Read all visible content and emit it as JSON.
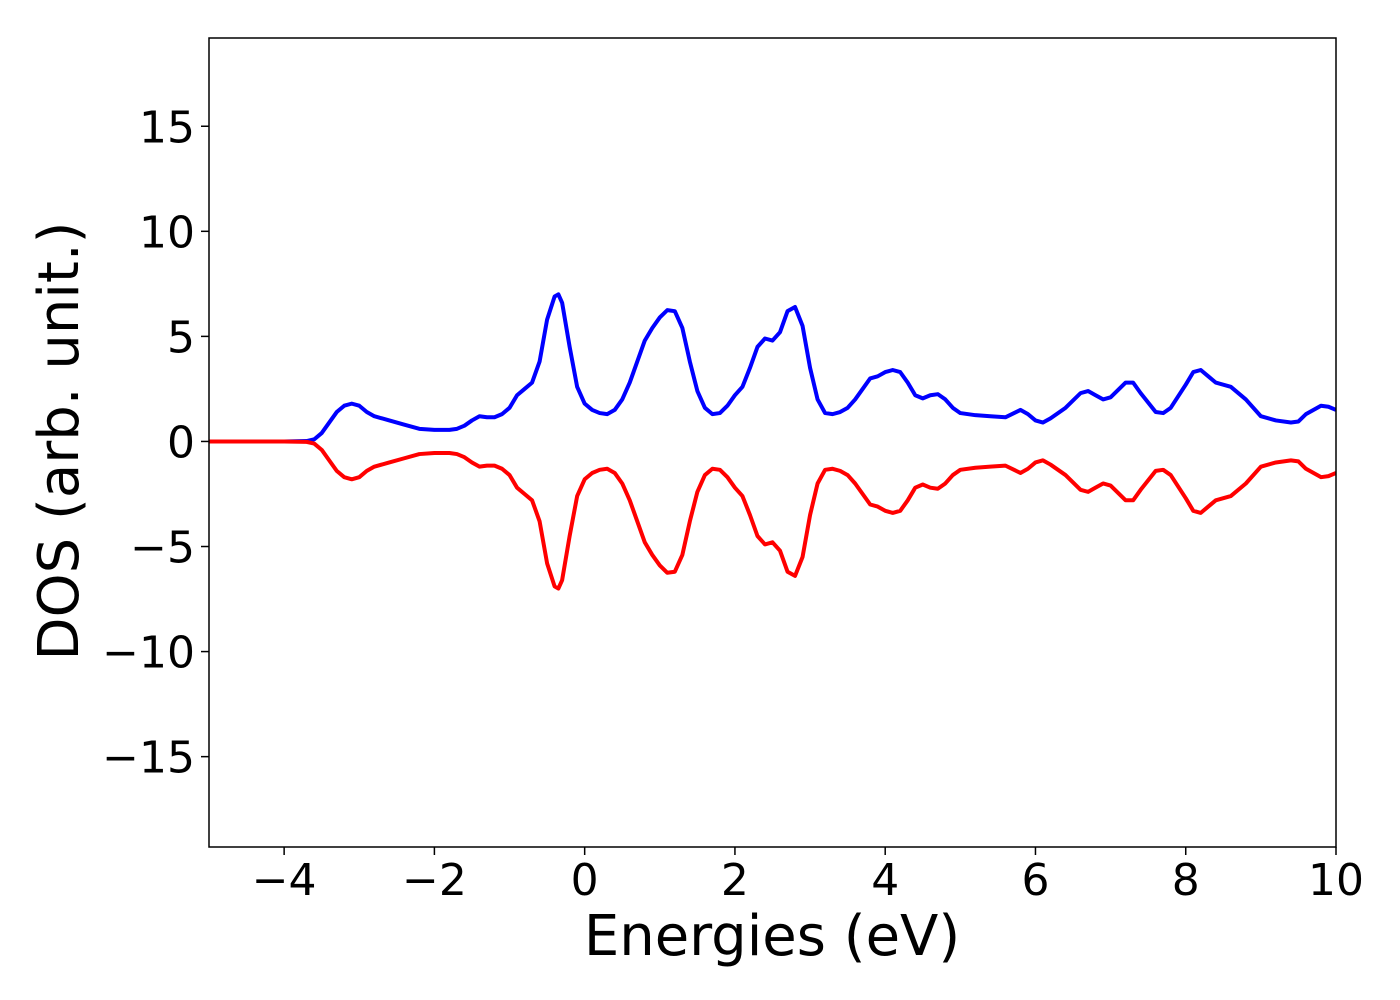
{
  "chart_data": {
    "type": "line",
    "xlabel": "Energies (eV)",
    "ylabel": "DOS (arb. unit.)",
    "xlim": [
      -5,
      10
    ],
    "ylim": [
      -19.3,
      19.2
    ],
    "xticks": [
      {
        "value": -4,
        "label": "−4"
      },
      {
        "value": -2,
        "label": "−2"
      },
      0,
      2,
      4,
      6,
      8,
      10
    ],
    "yticks": [
      {
        "value": -15,
        "label": "−15"
      },
      {
        "value": -10,
        "label": "−10"
      },
      {
        "value": -5,
        "label": "−5"
      },
      0,
      5,
      10,
      15
    ],
    "x": [
      -5,
      -4.5,
      -4,
      -3.7,
      -3.6,
      -3.5,
      -3.4,
      -3.3,
      -3.2,
      -3.1,
      -3.0,
      -2.9,
      -2.8,
      -2.6,
      -2.4,
      -2.2,
      -2.0,
      -1.8,
      -1.7,
      -1.6,
      -1.5,
      -1.4,
      -1.3,
      -1.2,
      -1.1,
      -1.0,
      -0.9,
      -0.8,
      -0.7,
      -0.6,
      -0.5,
      -0.4,
      -0.35,
      -0.3,
      -0.2,
      -0.1,
      0,
      0.1,
      0.2,
      0.3,
      0.4,
      0.5,
      0.6,
      0.7,
      0.8,
      0.9,
      1.0,
      1.1,
      1.2,
      1.3,
      1.4,
      1.5,
      1.6,
      1.7,
      1.8,
      1.9,
      2.0,
      2.1,
      2.2,
      2.3,
      2.4,
      2.5,
      2.6,
      2.7,
      2.8,
      2.9,
      3.0,
      3.1,
      3.2,
      3.3,
      3.4,
      3.5,
      3.6,
      3.7,
      3.8,
      3.9,
      4.0,
      4.1,
      4.2,
      4.3,
      4.4,
      4.5,
      4.6,
      4.7,
      4.8,
      4.9,
      5.0,
      5.2,
      5.4,
      5.6,
      5.8,
      5.9,
      6.0,
      6.1,
      6.2,
      6.4,
      6.6,
      6.7,
      6.8,
      6.9,
      7.0,
      7.2,
      7.3,
      7.4,
      7.6,
      7.7,
      7.8,
      8.0,
      8.1,
      8.2,
      8.3,
      8.4,
      8.6,
      8.8,
      9.0,
      9.2,
      9.4,
      9.5,
      9.6,
      9.8,
      9.9,
      10.0
    ],
    "series": [
      {
        "color": "#0000ff",
        "values": [
          0,
          0,
          0,
          0.02,
          0.1,
          0.4,
          0.9,
          1.4,
          1.7,
          1.8,
          1.7,
          1.4,
          1.2,
          1.0,
          0.8,
          0.6,
          0.55,
          0.55,
          0.6,
          0.75,
          1.0,
          1.2,
          1.15,
          1.15,
          1.3,
          1.6,
          2.2,
          2.5,
          2.8,
          3.8,
          5.8,
          6.9,
          7.0,
          6.6,
          4.5,
          2.6,
          1.8,
          1.5,
          1.35,
          1.3,
          1.5,
          2.0,
          2.8,
          3.8,
          4.8,
          5.4,
          5.9,
          6.25,
          6.2,
          5.4,
          3.8,
          2.4,
          1.6,
          1.3,
          1.35,
          1.7,
          2.2,
          2.6,
          3.5,
          4.5,
          4.9,
          4.8,
          5.2,
          6.2,
          6.4,
          5.5,
          3.5,
          2.0,
          1.35,
          1.3,
          1.4,
          1.6,
          2.0,
          2.5,
          3.0,
          3.1,
          3.3,
          3.4,
          3.3,
          2.8,
          2.2,
          2.05,
          2.2,
          2.25,
          2.0,
          1.6,
          1.35,
          1.25,
          1.2,
          1.15,
          1.5,
          1.3,
          1.0,
          0.9,
          1.1,
          1.6,
          2.3,
          2.4,
          2.2,
          2.0,
          2.1,
          2.8,
          2.8,
          2.3,
          1.4,
          1.35,
          1.6,
          2.7,
          3.3,
          3.4,
          3.1,
          2.8,
          2.6,
          2.0,
          1.2,
          1.0,
          0.9,
          0.95,
          1.3,
          1.7,
          1.65,
          1.5
        ]
      },
      {
        "color": "#ff0000",
        "values": [
          0,
          0,
          0,
          -0.02,
          -0.1,
          -0.4,
          -0.9,
          -1.4,
          -1.7,
          -1.8,
          -1.7,
          -1.4,
          -1.2,
          -1.0,
          -0.8,
          -0.6,
          -0.55,
          -0.55,
          -0.6,
          -0.75,
          -1.0,
          -1.2,
          -1.15,
          -1.15,
          -1.3,
          -1.6,
          -2.2,
          -2.5,
          -2.8,
          -3.8,
          -5.8,
          -6.9,
          -7.0,
          -6.6,
          -4.5,
          -2.6,
          -1.8,
          -1.5,
          -1.35,
          -1.3,
          -1.5,
          -2.0,
          -2.8,
          -3.8,
          -4.8,
          -5.4,
          -5.9,
          -6.25,
          -6.2,
          -5.4,
          -3.8,
          -2.4,
          -1.6,
          -1.3,
          -1.35,
          -1.7,
          -2.2,
          -2.6,
          -3.5,
          -4.5,
          -4.9,
          -4.8,
          -5.2,
          -6.2,
          -6.4,
          -5.5,
          -3.5,
          -2.0,
          -1.35,
          -1.3,
          -1.4,
          -1.6,
          -2.0,
          -2.5,
          -3.0,
          -3.1,
          -3.3,
          -3.4,
          -3.3,
          -2.8,
          -2.2,
          -2.05,
          -2.2,
          -2.25,
          -2.0,
          -1.6,
          -1.35,
          -1.25,
          -1.2,
          -1.15,
          -1.5,
          -1.3,
          -1.0,
          -0.9,
          -1.1,
          -1.6,
          -2.3,
          -2.4,
          -2.2,
          -2.0,
          -2.1,
          -2.8,
          -2.8,
          -2.3,
          -1.4,
          -1.35,
          -1.6,
          -2.7,
          -3.3,
          -3.4,
          -3.1,
          -2.8,
          -2.6,
          -2.0,
          -1.2,
          -1.0,
          -0.9,
          -0.95,
          -1.3,
          -1.7,
          -1.65,
          -1.5
        ]
      }
    ]
  }
}
